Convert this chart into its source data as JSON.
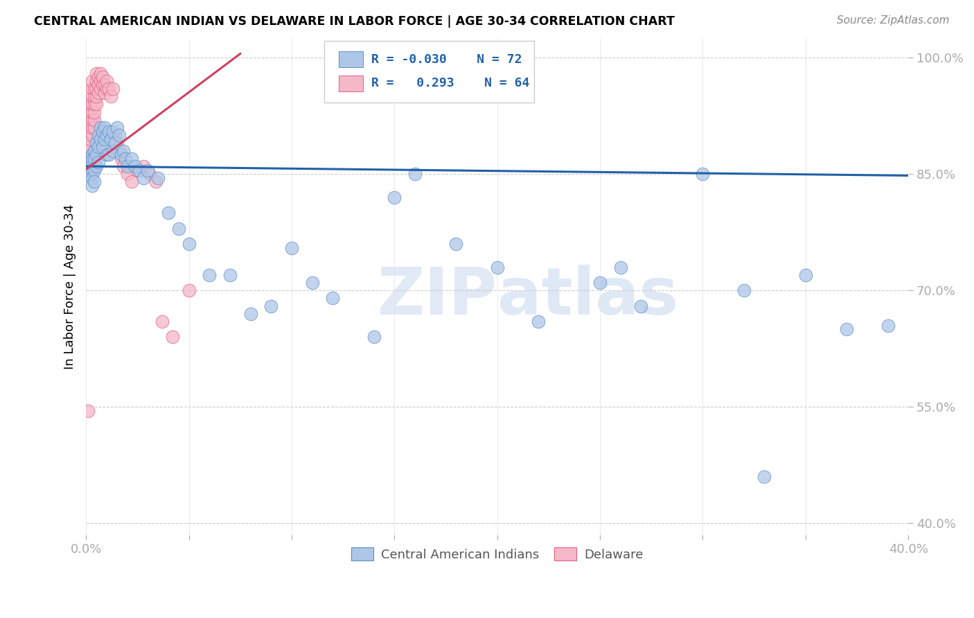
{
  "title": "CENTRAL AMERICAN INDIAN VS DELAWARE IN LABOR FORCE | AGE 30-34 CORRELATION CHART",
  "source": "Source: ZipAtlas.com",
  "ylabel": "In Labor Force | Age 30-34",
  "watermark_zip": "ZIP",
  "watermark_atlas": "atlas",
  "xlim": [
    0.0,
    0.4
  ],
  "ylim": [
    0.385,
    1.025
  ],
  "x_ticks": [
    0.0,
    0.05,
    0.1,
    0.15,
    0.2,
    0.25,
    0.3,
    0.35,
    0.4
  ],
  "y_ticks": [
    0.4,
    0.55,
    0.7,
    0.85,
    1.0
  ],
  "y_tick_labels": [
    "40.0%",
    "55.0%",
    "70.0%",
    "85.0%",
    "100.0%"
  ],
  "blue_R": "-0.030",
  "blue_N": "72",
  "pink_R": "0.293",
  "pink_N": "64",
  "blue_color": "#aec6e8",
  "pink_color": "#f5b8c8",
  "blue_edge_color": "#5a8fc4",
  "pink_edge_color": "#e06080",
  "blue_line_color": "#2060a8",
  "pink_line_color": "#d04060",
  "legend_label_blue": "Central American Indians",
  "legend_label_pink": "Delaware",
  "blue_scatter_x": [
    0.001,
    0.001,
    0.002,
    0.002,
    0.002,
    0.003,
    0.003,
    0.003,
    0.003,
    0.003,
    0.003,
    0.004,
    0.004,
    0.004,
    0.004,
    0.005,
    0.005,
    0.005,
    0.006,
    0.006,
    0.006,
    0.007,
    0.007,
    0.008,
    0.008,
    0.009,
    0.009,
    0.01,
    0.01,
    0.011,
    0.011,
    0.012,
    0.013,
    0.013,
    0.014,
    0.015,
    0.016,
    0.017,
    0.018,
    0.019,
    0.02,
    0.022,
    0.024,
    0.026,
    0.028,
    0.03,
    0.035,
    0.04,
    0.045,
    0.05,
    0.06,
    0.07,
    0.08,
    0.09,
    0.1,
    0.11,
    0.12,
    0.14,
    0.16,
    0.18,
    0.2,
    0.22,
    0.25,
    0.27,
    0.3,
    0.32,
    0.35,
    0.37,
    0.26,
    0.15,
    0.33,
    0.39
  ],
  "blue_scatter_y": [
    0.853,
    0.86,
    0.857,
    0.864,
    0.85,
    0.855,
    0.865,
    0.875,
    0.845,
    0.835,
    0.87,
    0.88,
    0.87,
    0.855,
    0.84,
    0.89,
    0.875,
    0.86,
    0.9,
    0.885,
    0.865,
    0.91,
    0.895,
    0.905,
    0.885,
    0.91,
    0.895,
    0.9,
    0.875,
    0.905,
    0.875,
    0.895,
    0.905,
    0.88,
    0.89,
    0.91,
    0.9,
    0.875,
    0.88,
    0.87,
    0.86,
    0.87,
    0.86,
    0.855,
    0.845,
    0.855,
    0.845,
    0.8,
    0.78,
    0.76,
    0.72,
    0.72,
    0.67,
    0.68,
    0.755,
    0.71,
    0.69,
    0.64,
    0.85,
    0.76,
    0.73,
    0.66,
    0.71,
    0.68,
    0.85,
    0.7,
    0.72,
    0.65,
    0.73,
    0.82,
    0.46,
    0.655
  ],
  "pink_scatter_x": [
    0.001,
    0.001,
    0.001,
    0.001,
    0.001,
    0.001,
    0.001,
    0.001,
    0.002,
    0.002,
    0.002,
    0.002,
    0.002,
    0.002,
    0.002,
    0.002,
    0.003,
    0.003,
    0.003,
    0.003,
    0.003,
    0.003,
    0.003,
    0.003,
    0.004,
    0.004,
    0.004,
    0.004,
    0.004,
    0.004,
    0.005,
    0.005,
    0.005,
    0.005,
    0.005,
    0.006,
    0.006,
    0.006,
    0.007,
    0.007,
    0.007,
    0.008,
    0.008,
    0.009,
    0.009,
    0.01,
    0.01,
    0.011,
    0.012,
    0.013,
    0.014,
    0.015,
    0.016,
    0.017,
    0.018,
    0.02,
    0.022,
    0.025,
    0.028,
    0.031,
    0.034,
    0.037,
    0.042,
    0.05
  ],
  "pink_scatter_y": [
    0.855,
    0.86,
    0.865,
    0.87,
    0.875,
    0.88,
    0.885,
    0.545,
    0.865,
    0.875,
    0.885,
    0.895,
    0.905,
    0.915,
    0.925,
    0.94,
    0.9,
    0.91,
    0.92,
    0.93,
    0.94,
    0.95,
    0.96,
    0.97,
    0.91,
    0.92,
    0.93,
    0.94,
    0.95,
    0.96,
    0.94,
    0.95,
    0.96,
    0.97,
    0.98,
    0.955,
    0.965,
    0.975,
    0.96,
    0.97,
    0.98,
    0.965,
    0.975,
    0.955,
    0.965,
    0.96,
    0.97,
    0.96,
    0.95,
    0.96,
    0.9,
    0.89,
    0.88,
    0.87,
    0.86,
    0.85,
    0.84,
    0.855,
    0.86,
    0.85,
    0.84,
    0.66,
    0.64,
    0.7
  ],
  "blue_trend_x": [
    0.0,
    0.4
  ],
  "blue_trend_y": [
    0.86,
    0.848
  ],
  "pink_trend_x": [
    0.0,
    0.075
  ],
  "pink_trend_y": [
    0.856,
    1.005
  ]
}
